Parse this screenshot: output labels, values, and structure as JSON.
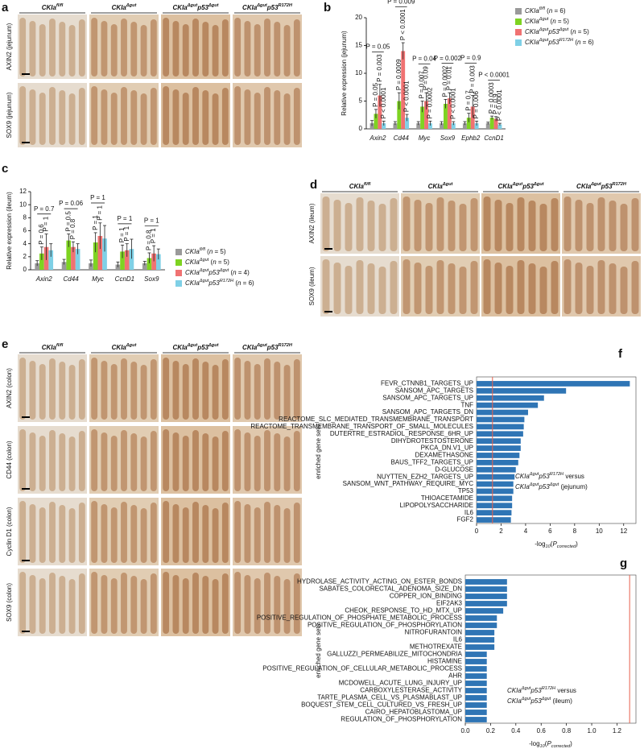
{
  "histology": [
    {
      "label": "a",
      "columns": [
        [
          {
            "i": "CKIa"
          },
          {
            "sup": "fl/fl"
          }
        ],
        [
          {
            "i": "CKIa"
          },
          {
            "sup": "Δgut"
          }
        ],
        [
          {
            "i": "CKIa"
          },
          {
            "sup": "Δgut"
          },
          {
            "i": "p53"
          },
          {
            "sup": "Δgut"
          }
        ],
        [
          {
            "i": "CKIa"
          },
          {
            "sup": "Δgut"
          },
          {
            "i": "p53"
          },
          {
            "sup": "R172H"
          }
        ]
      ],
      "rows": [
        "AXIN2 (jejunum)",
        "SOX9 (jejunum)"
      ]
    },
    {
      "label": "d",
      "columns": [
        [
          {
            "i": "CKIa"
          },
          {
            "sup": "fl/fl"
          }
        ],
        [
          {
            "i": "CKIa"
          },
          {
            "sup": "Δgut"
          }
        ],
        [
          {
            "i": "CKIa"
          },
          {
            "sup": "Δgut"
          },
          {
            "i": "p53"
          },
          {
            "sup": "Δgut"
          }
        ],
        [
          {
            "i": "CKIa"
          },
          {
            "sup": "Δgut"
          },
          {
            "i": "p53"
          },
          {
            "sup": "R172H"
          }
        ]
      ],
      "rows": [
        "AXIN2 (ileum)",
        "SOX9 (ileum)"
      ]
    },
    {
      "label": "e",
      "columns": [
        [
          {
            "i": "CKIa"
          },
          {
            "sup": "fl/fl"
          }
        ],
        [
          {
            "i": "CKIa"
          },
          {
            "sup": "Δgut"
          }
        ],
        [
          {
            "i": "CKIa"
          },
          {
            "sup": "Δgut"
          },
          {
            "i": "p53"
          },
          {
            "sup": "Δgut"
          }
        ],
        [
          {
            "i": "CKIa"
          },
          {
            "sup": "Δgut"
          },
          {
            "i": "p53"
          },
          {
            "sup": "R172H"
          }
        ]
      ],
      "rows": [
        "AXIN2 (colon)",
        "CD44 (colon)",
        "Cyclin D1 (colon)",
        "SOX9 (colon)"
      ]
    }
  ],
  "chart_data": [
    {
      "label": "b",
      "type": "bar",
      "ylabel": "Relative expression (jejunum)",
      "categories": [
        "Axin2",
        "Cd44",
        "Myc",
        "Sox9",
        "Ephb2",
        "CcnD1"
      ],
      "ylim": [
        0,
        20
      ],
      "yticks": [
        0,
        5,
        10,
        15,
        20
      ],
      "grid": false,
      "series": [
        {
          "name": [
            {
              "i": "CKIa"
            },
            {
              "sup": "fl/fl"
            },
            {
              "t": " ("
            },
            {
              "i": "n"
            },
            {
              "t": " = 6)"
            }
          ],
          "color": "#9a9a9a",
          "values": [
            1,
            1,
            1,
            1,
            1,
            1
          ],
          "errors": [
            0.5,
            0.3,
            0.3,
            0.3,
            0.3,
            0.2
          ]
        },
        {
          "name": [
            {
              "i": "CKIa"
            },
            {
              "sup": "Δgut"
            },
            {
              "t": " ("
            },
            {
              "i": "n"
            },
            {
              "t": " = 5)"
            }
          ],
          "color": "#7ed321",
          "values": [
            2.7,
            5,
            4,
            4.5,
            2,
            2
          ],
          "errors": [
            0.8,
            1.5,
            1,
            0.8,
            0.8,
            0.3
          ]
        },
        {
          "name": [
            {
              "i": "CKIa"
            },
            {
              "sup": "Δgut"
            },
            {
              "i": "p53"
            },
            {
              "sup": "Δgut"
            },
            {
              "t": " ("
            },
            {
              "i": "n"
            },
            {
              "t": " = 5)"
            }
          ],
          "color": "#f07272",
          "values": [
            6,
            14,
            5,
            5.5,
            4,
            1.8
          ],
          "errors": [
            2,
            1.5,
            1.5,
            1,
            2,
            0.4
          ]
        },
        {
          "name": [
            {
              "i": "CKIa"
            },
            {
              "sup": "Δgut"
            },
            {
              "i": "p53"
            },
            {
              "sup": "R172H"
            },
            {
              "t": " ("
            },
            {
              "i": "n"
            },
            {
              "t": " = 6)"
            }
          ],
          "color": "#7fd0e6",
          "values": [
            1,
            2,
            1,
            1,
            1,
            0.8
          ],
          "errors": [
            0.4,
            0.6,
            0.4,
            0.3,
            0.4,
            0.2
          ]
        }
      ],
      "pvalues": [
        {
          "top": "P = 0.05",
          "pairs": [
            "P = 0.05",
            "P = 0.003",
            "P < 0.0001"
          ]
        },
        {
          "top": "P = 0.009",
          "pairs": [
            "P = 0.0009",
            "P < 0.0001",
            "P < 0.0001"
          ]
        },
        {
          "top": "P = 0.04",
          "pairs": [
            "P = 0.007",
            "P = 0.09",
            "P = 0.0002"
          ]
        },
        {
          "top": "P = 0.002",
          "pairs": [
            "P = 0.0002",
            "P = 0.01",
            "P < 0.0001"
          ]
        },
        {
          "top": "P = 0.9",
          "pairs": [
            "P = 0.7",
            "P = 0.003",
            "P = 0.006"
          ]
        },
        {
          "top": "P < 0.0001",
          "pairs": [
            "P = 0.0003",
            "P = 0.9",
            "P < 0.0001"
          ]
        }
      ]
    },
    {
      "label": "c",
      "type": "bar",
      "ylabel": "Relative expression (ileum)",
      "categories": [
        "Axin2",
        "Cd44",
        "Myc",
        "CcnD1",
        "Sox9"
      ],
      "ylim": [
        0,
        12
      ],
      "yticks": [
        0,
        2,
        4,
        6,
        8,
        10,
        12
      ],
      "grid": false,
      "series": [
        {
          "name": [
            {
              "i": "CKIa"
            },
            {
              "sup": "fl/fl"
            },
            {
              "t": " ("
            },
            {
              "i": "n"
            },
            {
              "t": " = 5)"
            }
          ],
          "color": "#9a9a9a",
          "values": [
            1,
            1.2,
            1,
            0.8,
            1
          ],
          "errors": [
            0.4,
            0.4,
            0.5,
            0.4,
            0.3
          ]
        },
        {
          "name": [
            {
              "i": "CKIa"
            },
            {
              "sup": "Δgut"
            },
            {
              "t": " ("
            },
            {
              "i": "n"
            },
            {
              "t": " = 5)"
            }
          ],
          "color": "#7ed321",
          "values": [
            2.5,
            4.5,
            4.2,
            2.8,
            1.8
          ],
          "errors": [
            1,
            1,
            1.5,
            1,
            0.8
          ]
        },
        {
          "name": [
            {
              "i": "CKIa"
            },
            {
              "sup": "Δgut"
            },
            {
              "i": "p53"
            },
            {
              "sup": "Δgut"
            },
            {
              "t": " ("
            },
            {
              "i": "n"
            },
            {
              "t": " = 4)"
            }
          ],
          "color": "#f07272",
          "values": [
            3.5,
            3.5,
            5.2,
            3,
            2.5
          ],
          "errors": [
            2,
            0.8,
            2,
            1,
            1.2
          ]
        },
        {
          "name": [
            {
              "i": "CKIa"
            },
            {
              "sup": "Δgut"
            },
            {
              "i": "p53"
            },
            {
              "sup": "R172H"
            },
            {
              "t": " ("
            },
            {
              "i": "n"
            },
            {
              "t": " = 6)"
            }
          ],
          "color": "#7fd0e6",
          "values": [
            3,
            3.2,
            4.8,
            3.2,
            2.4
          ],
          "errors": [
            1,
            0.8,
            2,
            1.5,
            0.8
          ]
        }
      ],
      "pvalues": [
        {
          "top": "P = 0.7",
          "pairs": [
            "P = 0.6",
            "P = 1"
          ]
        },
        {
          "top": "P = 0.06",
          "pairs": [
            "P = 0.5",
            "P = 0.8"
          ]
        },
        {
          "top": "P = 1",
          "pairs": [
            "P = 1",
            "P = 1"
          ]
        },
        {
          "top": "P = 1",
          "pairs": [
            "P = 1",
            "P = 1"
          ]
        },
        {
          "top": "P = 1",
          "pairs": [
            "P = 0.8",
            "P = 1"
          ]
        }
      ]
    },
    {
      "label": "f",
      "type": "hbar",
      "ylabel": "enriched gene sets",
      "xlabel": [
        {
          "t": "-log"
        },
        {
          "sub": "10"
        },
        {
          "t": "("
        },
        {
          "i": "P"
        },
        {
          "sub": "corrected"
        },
        {
          "t": ")"
        }
      ],
      "categories": [
        "FEVR_CTNNB1_TARGETS_UP",
        "SANSOM_APC_TARGETS",
        "SANSOM_APC_TARGETS_UP",
        "TNF",
        "SANSOM_APC_TARGETS_DN",
        "REACTOME_SLC_MEDIATED_TRANSMEMBRANE_TRANSPORT",
        "REACTOME_TRANSMEMBRANE_TRANSPORT_OF_SMALL_MOLECULES",
        "DUTERTRE_ESTRADIOL_RESPONSE_6HR_UP",
        "DIHYDROTESTOSTERONE",
        "PKCA_DN.V1_UP",
        "DEXAMETHASONE",
        "BAUS_TFF2_TARGETS_UP",
        "D-GLUCOSE",
        "NUYTTEN_EZH2_TARGETS_UP",
        "SANSOM_WNT_PATHWAY_REQUIRE_MYC",
        "TP53",
        "THIOACETAMIDE",
        "LIPOPOLYSACCHARIDE",
        "IL6",
        "FGF2"
      ],
      "values": [
        12.5,
        7.3,
        5.5,
        5.0,
        4.2,
        3.9,
        3.85,
        3.8,
        3.6,
        3.6,
        3.5,
        3.4,
        3.2,
        3.1,
        3.0,
        3.0,
        2.9,
        2.9,
        2.85,
        2.8
      ],
      "color": "#2f75b5",
      "threshold": 1.3,
      "threshold_color": "#e8604c",
      "xlim": [
        0,
        13
      ],
      "xticks": [
        0,
        2,
        4,
        6,
        8,
        10,
        12
      ],
      "annotation": [
        [
          {
            "i": "CKIa"
          },
          {
            "sup": "Δgut"
          },
          {
            "i": "p53"
          },
          {
            "sup": "R172H"
          },
          {
            "t": " versus"
          }
        ],
        [
          {
            "i": "CKIa"
          },
          {
            "sup": "Δgut"
          },
          {
            "i": "p53"
          },
          {
            "sup": "Δgut"
          },
          {
            "t": " (jejunum)"
          }
        ]
      ]
    },
    {
      "label": "g",
      "type": "hbar",
      "ylabel": "enriched gene sets",
      "xlabel": [
        {
          "t": "-log"
        },
        {
          "sub": "10"
        },
        {
          "t": "("
        },
        {
          "i": "P"
        },
        {
          "sub": "corrected"
        },
        {
          "t": ")"
        }
      ],
      "categories": [
        "HYDROLASE_ACTIVITY_ACTING_ON_ESTER_BONDS",
        "SABATES_COLORECTAL_ADENOMA_SIZE_DN",
        "COPPER_ION_BINDING",
        "EIF2AK3",
        "CHEOK_RESPONSE_TO_HD_MTX_UP",
        "POSITIVE_REGULATION_OF_PHOSPHATE_METABOLIC_PROCESS",
        "POSITIVE_REGULATION_OF_PHOSPHORYLATION",
        "NITROFURANTOIN",
        "IL6",
        "METHOTREXATE",
        "GALLUZZI_PERMEABILIZE_MITOCHONDRIA",
        "HISTAMINE",
        "POSITIVE_REGULATION_OF_CELLULAR_METABOLIC_PROCESS",
        "AHR",
        "MCDOWELL_ACUTE_LUNG_INJURY_UP",
        "CARBOXYLESTERASE_ACTIVITY",
        "TARTE_PLASMA_CELL_VS_PLASMABLAST_UP",
        "BOQUEST_STEM_CELL_CULTURED_VS_FRESH_UP",
        "CAIRO_HEPATOBLASTOMA_UP",
        "REGULATION_OF_PHOSPHORYLATION"
      ],
      "values": [
        0.33,
        0.33,
        0.33,
        0.33,
        0.3,
        0.25,
        0.25,
        0.23,
        0.23,
        0.23,
        0.17,
        0.17,
        0.17,
        0.17,
        0.17,
        0.17,
        0.17,
        0.17,
        0.17,
        0.17
      ],
      "color": "#2f75b5",
      "threshold": 1.3,
      "threshold_color": "#e8604c",
      "xlim": [
        0,
        1.35
      ],
      "xticks": [
        {
          "value": 0,
          "label": "0.0"
        },
        0.2,
        0.4,
        0.6,
        0.8,
        {
          "value": 1,
          "label": "1.0"
        },
        1.2
      ],
      "annotation": [
        [
          {
            "i": "CKIa"
          },
          {
            "sup": "Δgut"
          },
          {
            "i": "p53"
          },
          {
            "sup": "R172H"
          },
          {
            "t": " versus"
          }
        ],
        [
          {
            "i": "CKIa"
          },
          {
            "sup": "Δgut"
          },
          {
            "i": "p53"
          },
          {
            "sup": "Δgut"
          },
          {
            "t": " (ileum)"
          }
        ]
      ]
    }
  ]
}
